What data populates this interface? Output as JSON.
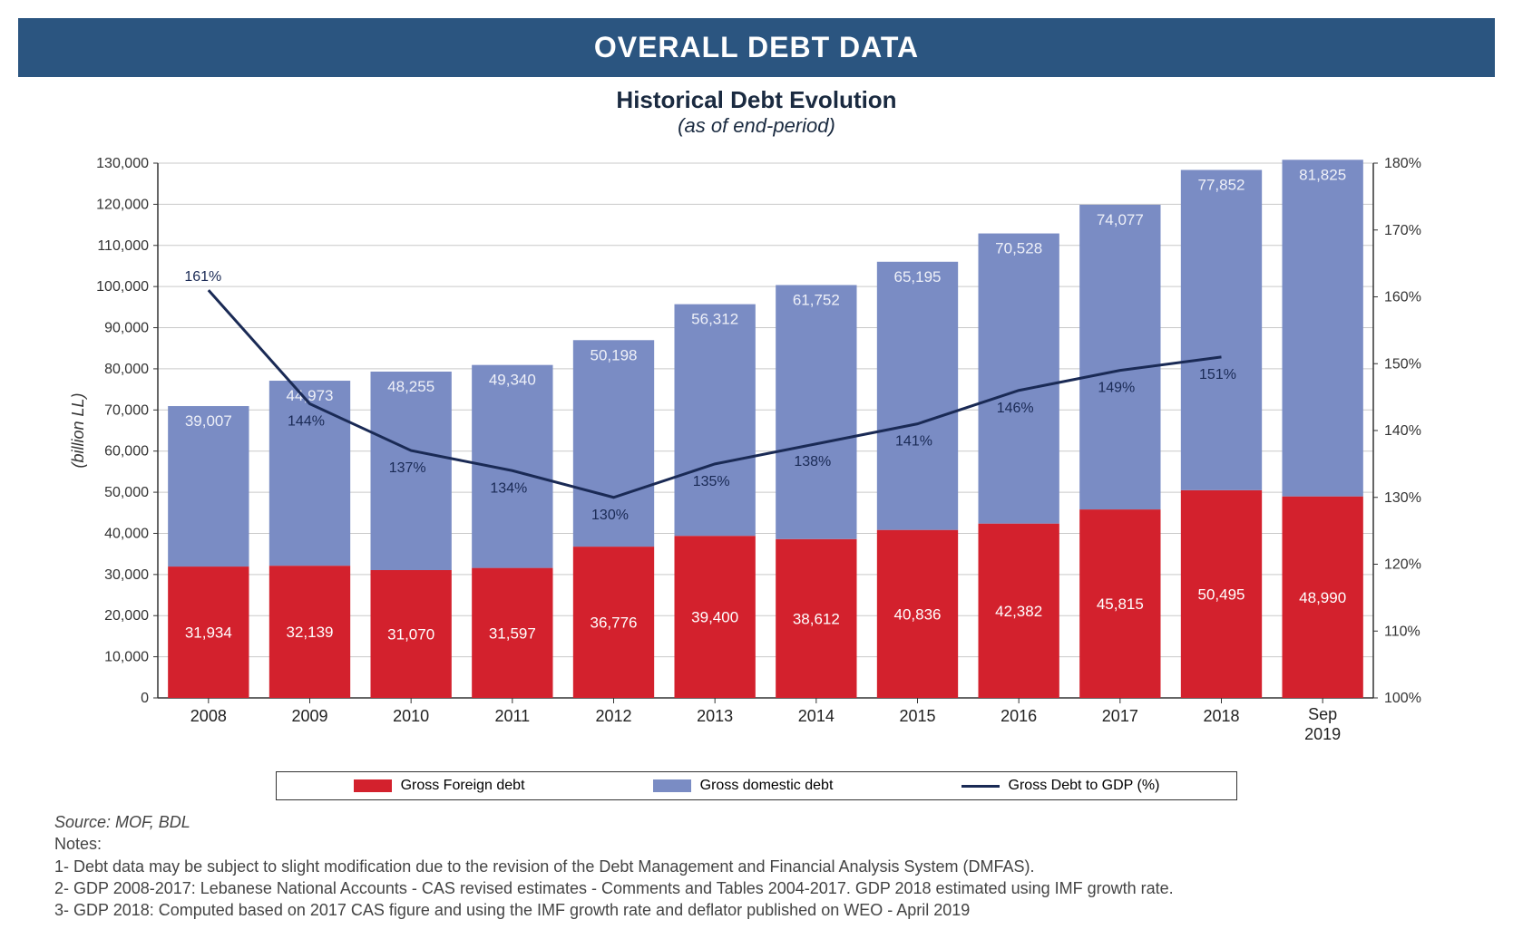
{
  "banner": {
    "text": "OVERALL DEBT DATA",
    "bg_color": "#2b5580",
    "text_color": "#ffffff"
  },
  "chart": {
    "title": "Historical Debt Evolution",
    "subtitle": "(as of end-period)",
    "title_color": "#1a2a40",
    "type": "stacked-bar-with-line",
    "categories": [
      "2008",
      "2009",
      "2010",
      "2011",
      "2012",
      "2013",
      "2014",
      "2015",
      "2016",
      "2017",
      "2018",
      "Sep 2019"
    ],
    "series": {
      "foreign": {
        "label": "Gross  Foreign debt",
        "color": "#d3212d",
        "values": [
          31934,
          32139,
          31070,
          31597,
          36776,
          39400,
          38612,
          40836,
          42382,
          45815,
          50495,
          48990
        ]
      },
      "domestic": {
        "label": "Gross domestic debt",
        "color": "#7a8cc4",
        "values": [
          39007,
          44973,
          48255,
          49340,
          50198,
          56312,
          61752,
          65195,
          70528,
          74077,
          77852,
          81825
        ]
      },
      "ratio": {
        "label": "Gross  Debt to GDP (%)",
        "color": "#1a2a55",
        "line_width": 3,
        "values_pct": [
          161,
          144,
          137,
          134,
          130,
          135,
          138,
          141,
          146,
          149,
          151,
          null
        ],
        "display_labels": [
          "161%",
          "144%",
          "137%",
          "134%",
          "130%",
          "135%",
          "138%",
          "141%",
          "146%",
          "149%",
          "151%",
          ""
        ]
      }
    },
    "y_left": {
      "label": "(billion LL)",
      "min": 0,
      "max": 130000,
      "step": 10000,
      "label_fontsize": 18,
      "tick_fontsize": 16
    },
    "y_right": {
      "min": 100,
      "max": 180,
      "step": 10,
      "suffix": "%",
      "tick_fontsize": 16
    },
    "plot": {
      "bg_color": "#ffffff",
      "grid_color": "#c9c9c9",
      "axis_color": "#333333",
      "bar_gap_ratio": 0.2,
      "bar_label_color_on_fill": "#ffffff",
      "bar_label_fontsize": 17,
      "line_label_fontsize": 16,
      "line_label_color": "#1a2a55",
      "upper_label_color_light": "#eef0f8"
    }
  },
  "legend": {
    "items": [
      {
        "key": "foreign",
        "kind": "swatch"
      },
      {
        "key": "domestic",
        "kind": "swatch"
      },
      {
        "key": "ratio",
        "kind": "line"
      }
    ]
  },
  "notes": {
    "source": "Source: MOF, BDL",
    "heading": "Notes:",
    "lines": [
      "1- Debt data may be subject to slight modification due to the revision of the Debt Management and Financial Analysis System (DMFAS).",
      "2- GDP 2008-2017: Lebanese National Accounts - CAS revised estimates - Comments and Tables 2004-2017. GDP 2018 estimated using IMF growth rate.",
      "3- GDP 2018: Computed based on 2017 CAS figure and using the IMF growth rate and deflator published on WEO - April 2019"
    ]
  }
}
